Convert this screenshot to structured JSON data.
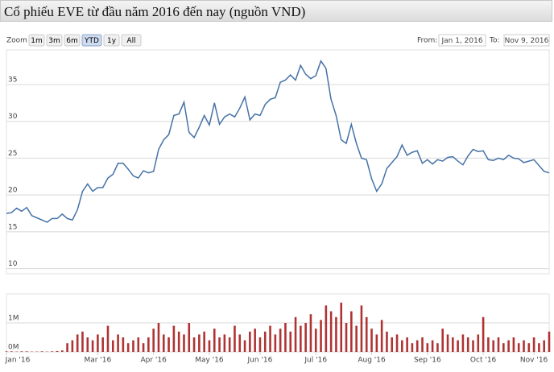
{
  "header": {
    "title": "Cổ phiếu EVE từ đầu năm 2016 đến nay (nguồn VND)"
  },
  "ui": {
    "zoom_label": "Zoom",
    "buttons": [
      "1m",
      "3m",
      "6m",
      "YTD",
      "1y",
      "All"
    ],
    "selected": "YTD",
    "from_label": "From:",
    "from_value": "Jan 1, 2016",
    "to_label": "To:",
    "to_value": "Nov 9, 2016"
  },
  "chart_data": [
    {
      "type": "line",
      "x": [
        "2016-01-04",
        "2016-01-06",
        "2016-01-08",
        "2016-01-12",
        "2016-01-14",
        "2016-01-18",
        "2016-01-20",
        "2016-01-22",
        "2016-01-26",
        "2016-01-28",
        "2016-02-01",
        "2016-02-03",
        "2016-02-05",
        "2016-02-15",
        "2016-02-17",
        "2016-02-19",
        "2016-02-23",
        "2016-02-25",
        "2016-03-01",
        "2016-03-03",
        "2016-03-07",
        "2016-03-09",
        "2016-03-11",
        "2016-03-15",
        "2016-03-17",
        "2016-03-21",
        "2016-03-23",
        "2016-03-25",
        "2016-03-29",
        "2016-04-01",
        "2016-04-05",
        "2016-04-07",
        "2016-04-11",
        "2016-04-13",
        "2016-04-15",
        "2016-04-19",
        "2016-04-21",
        "2016-04-25",
        "2016-04-27",
        "2016-04-29",
        "2016-05-04",
        "2016-05-06",
        "2016-05-10",
        "2016-05-12",
        "2016-05-16",
        "2016-05-18",
        "2016-05-20",
        "2016-05-24",
        "2016-05-26",
        "2016-05-30",
        "2016-06-01",
        "2016-06-03",
        "2016-06-07",
        "2016-06-09",
        "2016-06-13",
        "2016-06-15",
        "2016-06-17",
        "2016-06-21",
        "2016-06-23",
        "2016-06-27",
        "2016-06-29",
        "2016-07-01",
        "2016-07-05",
        "2016-07-07",
        "2016-07-11",
        "2016-07-13",
        "2016-07-15",
        "2016-07-19",
        "2016-07-21",
        "2016-07-25",
        "2016-07-27",
        "2016-07-29",
        "2016-08-02",
        "2016-08-04",
        "2016-08-08",
        "2016-08-10",
        "2016-08-12",
        "2016-08-16",
        "2016-08-18",
        "2016-08-22",
        "2016-08-24",
        "2016-08-26",
        "2016-08-30",
        "2016-09-01",
        "2016-09-06",
        "2016-09-08",
        "2016-09-12",
        "2016-09-14",
        "2016-09-16",
        "2016-09-20",
        "2016-09-22",
        "2016-09-26",
        "2016-09-28",
        "2016-09-30",
        "2016-10-04",
        "2016-10-06",
        "2016-10-10",
        "2016-10-12",
        "2016-10-14",
        "2016-10-18",
        "2016-10-20",
        "2016-10-24",
        "2016-10-26",
        "2016-10-28",
        "2016-11-01",
        "2016-11-03",
        "2016-11-07",
        "2016-11-09"
      ],
      "xlim": [
        "2016-01-04",
        "2016-11-09"
      ],
      "series": [
        {
          "color": "#4572a7",
          "values": [
            17.5,
            17.6,
            18.2,
            17.8,
            18.3,
            17.2,
            16.9,
            16.6,
            16.3,
            16.8,
            16.8,
            17.4,
            16.8,
            16.6,
            18.0,
            20.5,
            21.5,
            20.5,
            21.0,
            21.0,
            22.3,
            22.8,
            24.3,
            24.3,
            23.5,
            22.6,
            22.3,
            23.3,
            23.0,
            23.2,
            26.2,
            27.5,
            28.2,
            30.8,
            31.0,
            32.6,
            28.5,
            27.8,
            29.2,
            30.8,
            29.5,
            32.5,
            29.6,
            30.6,
            31.0,
            30.6,
            31.8,
            33.3,
            30.2,
            31.0,
            30.8,
            32.3,
            33.0,
            33.2,
            35.3,
            35.6,
            36.3,
            35.6,
            37.6,
            36.4,
            35.8,
            36.2,
            38.2,
            37.2,
            33.0,
            30.8,
            27.5,
            27.0,
            29.6,
            27.0,
            25.0,
            24.8,
            22.2,
            20.5,
            21.5,
            23.6,
            24.4,
            25.2,
            26.8,
            25.4,
            25.8,
            26.0,
            24.3,
            24.8,
            24.2,
            24.8,
            24.6,
            25.1,
            25.2,
            24.6,
            24.1,
            25.3,
            26.2,
            25.9,
            26.0,
            24.8,
            24.7,
            25.0,
            24.8,
            25.4,
            25.0,
            24.9,
            24.4,
            24.6,
            24.8,
            24.0,
            23.2,
            23.0
          ]
        }
      ],
      "ylim": [
        9.3,
        39.7
      ],
      "yticks": [
        10,
        15,
        20,
        25,
        30,
        35
      ],
      "grid": true
    },
    {
      "type": "bar",
      "x": [
        "2016-01-04",
        "2016-01-06",
        "2016-01-08",
        "2016-01-12",
        "2016-01-14",
        "2016-01-18",
        "2016-01-20",
        "2016-01-22",
        "2016-01-26",
        "2016-01-28",
        "2016-02-01",
        "2016-02-03",
        "2016-02-05",
        "2016-02-15",
        "2016-02-17",
        "2016-02-19",
        "2016-02-23",
        "2016-02-25",
        "2016-03-01",
        "2016-03-03",
        "2016-03-07",
        "2016-03-09",
        "2016-03-11",
        "2016-03-15",
        "2016-03-17",
        "2016-03-21",
        "2016-03-23",
        "2016-03-25",
        "2016-03-29",
        "2016-04-01",
        "2016-04-05",
        "2016-04-07",
        "2016-04-11",
        "2016-04-13",
        "2016-04-15",
        "2016-04-19",
        "2016-04-21",
        "2016-04-25",
        "2016-04-27",
        "2016-04-29",
        "2016-05-04",
        "2016-05-06",
        "2016-05-10",
        "2016-05-12",
        "2016-05-16",
        "2016-05-18",
        "2016-05-20",
        "2016-05-24",
        "2016-05-26",
        "2016-05-30",
        "2016-06-01",
        "2016-06-03",
        "2016-06-07",
        "2016-06-09",
        "2016-06-13",
        "2016-06-15",
        "2016-06-17",
        "2016-06-21",
        "2016-06-23",
        "2016-06-27",
        "2016-06-29",
        "2016-07-01",
        "2016-07-05",
        "2016-07-07",
        "2016-07-11",
        "2016-07-13",
        "2016-07-15",
        "2016-07-19",
        "2016-07-21",
        "2016-07-25",
        "2016-07-27",
        "2016-07-29",
        "2016-08-02",
        "2016-08-04",
        "2016-08-08",
        "2016-08-10",
        "2016-08-12",
        "2016-08-16",
        "2016-08-18",
        "2016-08-22",
        "2016-08-24",
        "2016-08-26",
        "2016-08-30",
        "2016-09-01",
        "2016-09-06",
        "2016-09-08",
        "2016-09-12",
        "2016-09-14",
        "2016-09-16",
        "2016-09-20",
        "2016-09-22",
        "2016-09-26",
        "2016-09-28",
        "2016-09-30",
        "2016-10-04",
        "2016-10-06",
        "2016-10-10",
        "2016-10-12",
        "2016-10-14",
        "2016-10-18",
        "2016-10-20",
        "2016-10-24",
        "2016-10-26",
        "2016-10-28",
        "2016-11-01",
        "2016-11-03",
        "2016-11-07",
        "2016-11-09"
      ],
      "xlim": [
        "2016-01-04",
        "2016-11-09"
      ],
      "xticks": [
        {
          "value": "2016-01-04",
          "label": "Jan '16"
        },
        {
          "value": "2016-03-01",
          "label": "Mar '16"
        },
        {
          "value": "2016-04-01",
          "label": "Apr '16"
        },
        {
          "value": "2016-05-04",
          "label": "May '16"
        },
        {
          "value": "2016-06-01",
          "label": "Jun '16"
        },
        {
          "value": "2016-07-01",
          "label": "Jul '16"
        },
        {
          "value": "2016-08-02",
          "label": "Aug '16"
        },
        {
          "value": "2016-09-01",
          "label": "Sep '16"
        },
        {
          "value": "2016-10-04",
          "label": "Oct '16"
        },
        {
          "value": "2016-11-01",
          "label": "Nov '16"
        }
      ],
      "series": [
        {
          "color": "#b03333",
          "values": [
            20000,
            20000,
            10000,
            20000,
            20000,
            10000,
            10000,
            20000,
            10000,
            20000,
            30000,
            50000,
            300000,
            400000,
            600000,
            700000,
            500000,
            400000,
            600000,
            500000,
            900000,
            400000,
            600000,
            500000,
            300000,
            400000,
            500000,
            300000,
            500000,
            800000,
            1000000,
            600000,
            500000,
            900000,
            700000,
            600000,
            1000000,
            500000,
            600000,
            700000,
            400000,
            800000,
            500000,
            600000,
            500000,
            900000,
            600000,
            400000,
            700000,
            800000,
            500000,
            700000,
            900000,
            600000,
            800000,
            1000000,
            700000,
            1200000,
            900000,
            1000000,
            1300000,
            800000,
            1100000,
            1600000,
            1400000,
            1200000,
            1700000,
            1000000,
            1400000,
            900000,
            1600000,
            1200000,
            800000,
            600000,
            1100000,
            700000,
            500000,
            600000,
            400000,
            500000,
            300000,
            400000,
            500000,
            300000,
            400000,
            300000,
            800000,
            600000,
            500000,
            400000,
            600000,
            500000,
            400000,
            600000,
            1200000,
            500000,
            400000,
            500000,
            300000,
            400000,
            500000,
            300000,
            400000,
            300000,
            500000,
            300000,
            400000,
            700000
          ]
        }
      ],
      "ylim": [
        0,
        2000000
      ],
      "yticks": [
        {
          "value": 0,
          "label": "0M"
        },
        {
          "value": 1000000,
          "label": "1M"
        }
      ],
      "grid": true
    }
  ]
}
